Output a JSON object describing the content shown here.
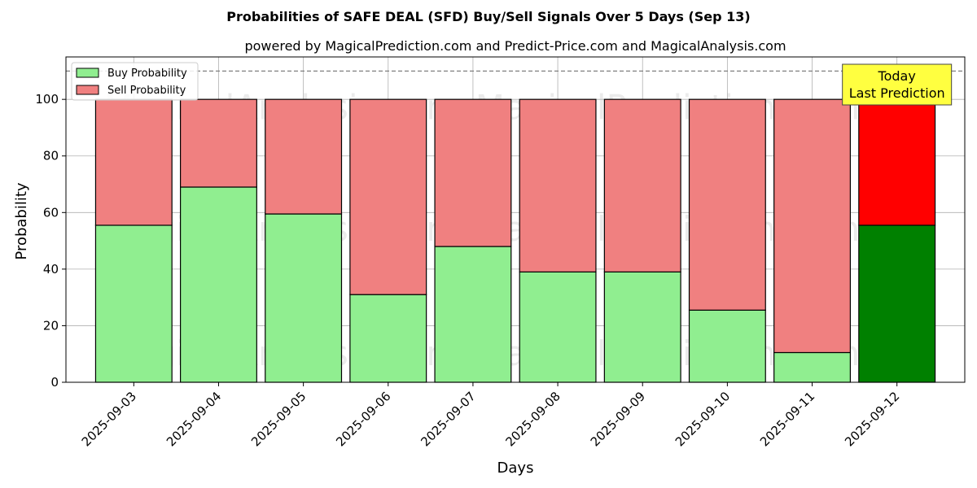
{
  "chart_data": {
    "type": "bar",
    "stacked": true,
    "title": "Probabilities of SAFE DEAL (SFD) Buy/Sell Signals Over 5 Days (Sep 13)",
    "subtitle": "powered by MagicalPrediction.com and Predict-Price.com and MagicalAnalysis.com",
    "xlabel": "Days",
    "ylabel": "Probability",
    "ylim": [
      0,
      115
    ],
    "yticks": [
      0,
      20,
      40,
      60,
      80,
      100
    ],
    "grid": true,
    "legend_position": "top-left",
    "categories": [
      "2025-09-03",
      "2025-09-04",
      "2025-09-05",
      "2025-09-06",
      "2025-09-07",
      "2025-09-08",
      "2025-09-09",
      "2025-09-10",
      "2025-09-11",
      "2025-09-12"
    ],
    "series": [
      {
        "name": "Buy Probability",
        "color": "#90ee90",
        "highlight_color": "#008000",
        "values": [
          55.5,
          69,
          59.5,
          31,
          48,
          39,
          39,
          25.5,
          10.5,
          55.5
        ]
      },
      {
        "name": "Sell Probability",
        "color": "#f08080",
        "highlight_color": "#ff0000",
        "values": [
          44.5,
          31,
          40.5,
          69,
          52,
          61,
          61,
          74.5,
          89.5,
          44.5
        ]
      }
    ],
    "highlight_index": 9,
    "reference_line": {
      "y": 110,
      "style": "dashed",
      "color": "#808080"
    },
    "annotation": {
      "lines": [
        "Today",
        "Last Prediction"
      ],
      "background": "#ffff40"
    },
    "watermarks": [
      "MagicalAnalysis.com",
      "MagicalPrediction.com"
    ]
  }
}
